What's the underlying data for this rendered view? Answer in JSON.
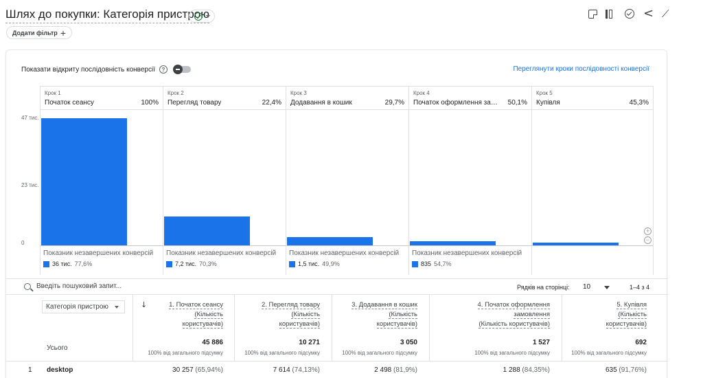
{
  "header": {
    "title": "Шлях до покупки: Категорія пристрою",
    "add_filter": "Додати фільтр",
    "toolbar_icons": [
      "note-icon",
      "compare-icon",
      "insights-icon",
      "share-icon",
      "trend-icon"
    ]
  },
  "funnel": {
    "open_sequence_label": "Показати відкриту послідовність конверсії",
    "view_steps_link": "Переглянути кроки послідовності конверсії",
    "y_ticks": [
      "47 тис.",
      "23 тис.",
      "0"
    ],
    "y_max": 47000,
    "steps": [
      {
        "step": "Крок 1",
        "name": "Початок сеансу",
        "pct": "100%",
        "value": 45886,
        "drop_label": "Показник незавершених конверсій",
        "drop_value": "36 тис.",
        "drop_pct": "77,6%"
      },
      {
        "step": "Крок 2",
        "name": "Перегляд товару",
        "pct": "22,4%",
        "value": 10271,
        "drop_label": "Показник незавершених конверсій",
        "drop_value": "7,2 тис.",
        "drop_pct": "70,3%"
      },
      {
        "step": "Крок 3",
        "name": "Додавання в кошик",
        "pct": "29,7%",
        "value": 3050,
        "drop_label": "Показник незавершених конверсій",
        "drop_value": "1,5 тис.",
        "drop_pct": "49,9%"
      },
      {
        "step": "Крок 4",
        "name": "Початок оформлення зам...",
        "pct": "50,1%",
        "value": 1527,
        "drop_label": "Показник незавершених конверсій",
        "drop_value": "835",
        "drop_pct": "54,7%"
      },
      {
        "step": "Крок 5",
        "name": "Купівля",
        "pct": "45,3%",
        "value": 692,
        "drop_label": "",
        "drop_value": "",
        "drop_pct": ""
      }
    ],
    "bar_color": "#1a73e8"
  },
  "table": {
    "search_placeholder": "Введіть пошуковий запит...",
    "rows_per_page_label": "Рядків на сторінці:",
    "rows_per_page": "10",
    "range": "1–4 з 4",
    "dimension": "Категорія пристрою",
    "sort_arrow": "↓",
    "columns": [
      [
        "1. Початок сеансу",
        "(Кількість",
        "користувачів)"
      ],
      [
        "2. Перегляд товару",
        "(Кількість",
        "користувачів)"
      ],
      [
        "3. Додавання в кошик",
        "(Кількість",
        "користувачів)"
      ],
      [
        "4. Початок оформлення",
        "замовлення",
        "(Кількість користувачів)"
      ],
      [
        "5. Купівля",
        "(Кількість",
        "користувачів)"
      ]
    ],
    "total_label": "Усього",
    "totals": [
      "45 886",
      "10 271",
      "3 050",
      "1 527",
      "692"
    ],
    "total_sub": "100% від загального підсумку",
    "rows": [
      {
        "n": "1",
        "dim": "desktop",
        "cells": [
          [
            "30 257",
            "(65,94%)"
          ],
          [
            "7 614",
            "(74,13%)"
          ],
          [
            "2 498",
            "(81,9%)"
          ],
          [
            "1 288",
            "(84,35%)"
          ],
          [
            "635",
            "(91,76%)"
          ]
        ]
      }
    ]
  }
}
